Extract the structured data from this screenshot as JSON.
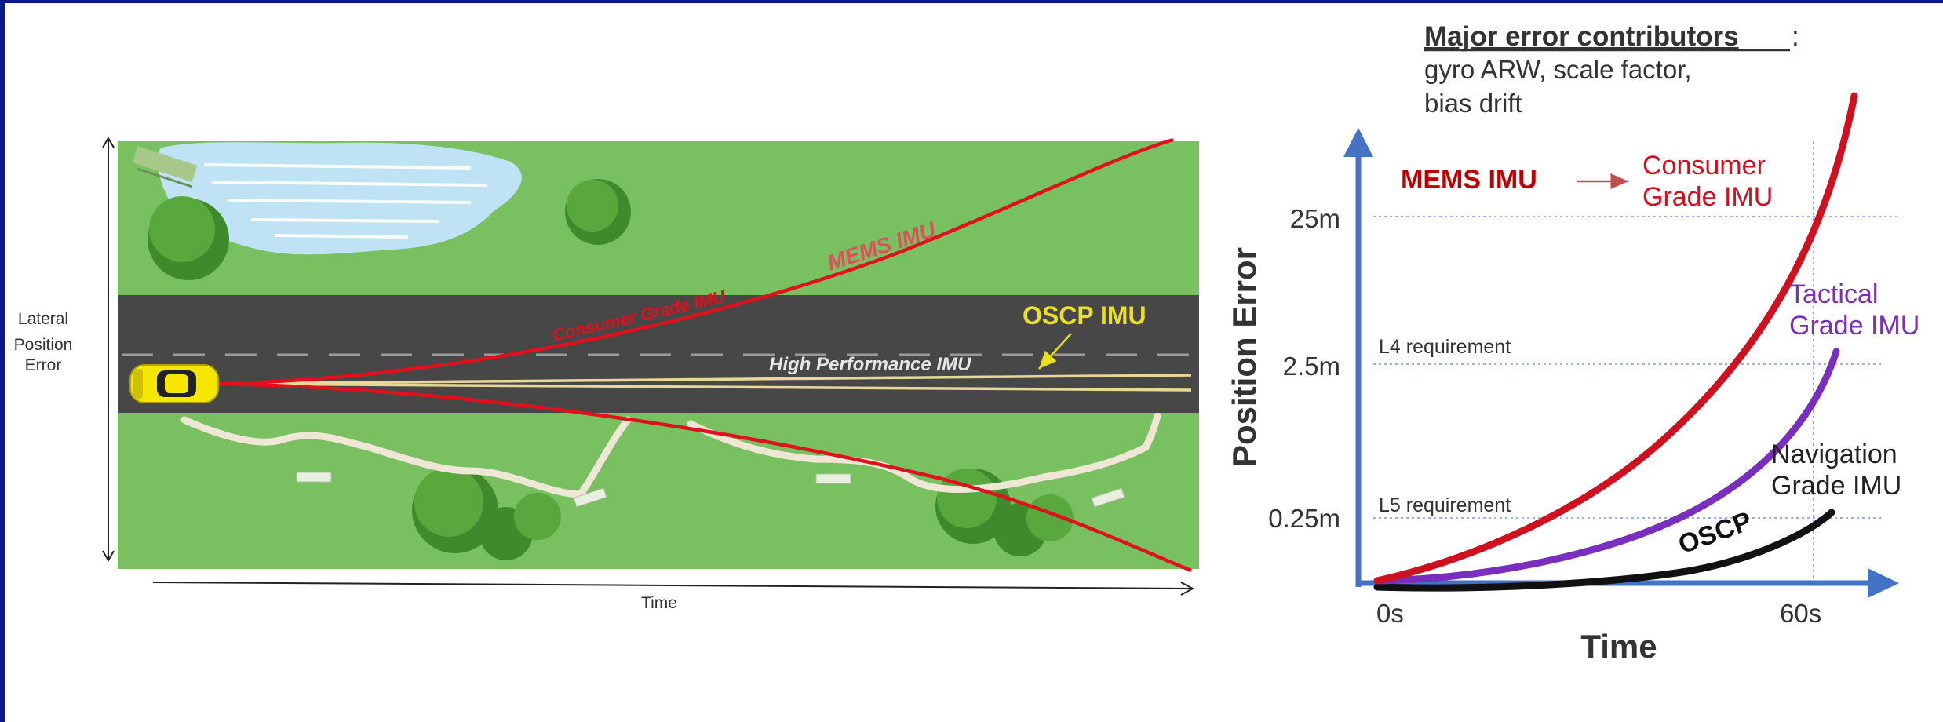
{
  "left_diagram": {
    "y_axis_label_lines": [
      "Lateral",
      "Position",
      "Error"
    ],
    "x_axis_label": "Time",
    "mems_label": "MEMS IMU",
    "consumer_label": "Consumer Grade IMU",
    "oscp_label": "OSCP IMU",
    "high_perf_label": "High Performance IMU"
  },
  "right_chart": {
    "header_title": "Major error contributors",
    "header_colon": ":",
    "header_line2": "gyro ARW, scale factor,",
    "header_line3": "bias drift",
    "y_axis_title": "Position Error",
    "x_axis_title": "Time",
    "y_ticks": [
      "25m",
      "2.5m",
      "0.25m"
    ],
    "x_ticks": [
      "0s",
      "60s"
    ],
    "l4_label": "L4 requirement",
    "l5_label": "L5 requirement",
    "mems_label": "MEMS IMU",
    "consumer_label_lines": [
      "Consumer",
      "Grade IMU"
    ],
    "tactical_label_lines": [
      "Tactical",
      "Grade IMU"
    ],
    "navigation_label_lines": [
      "Navigation",
      "Grade IMU"
    ],
    "oscp_label": "OSCP"
  },
  "colors": {
    "frame": "#0a1a8c",
    "grass": "#78c060",
    "road": "#474747",
    "water": "#bfe3f4",
    "mems_red": "#e0101c",
    "oscp_yellow": "#e8e020",
    "axis_blue": "#4472c4",
    "consumer_red": "#d0101e",
    "tactical_purple": "#7a2ebe",
    "navigation_black": "#111111"
  }
}
